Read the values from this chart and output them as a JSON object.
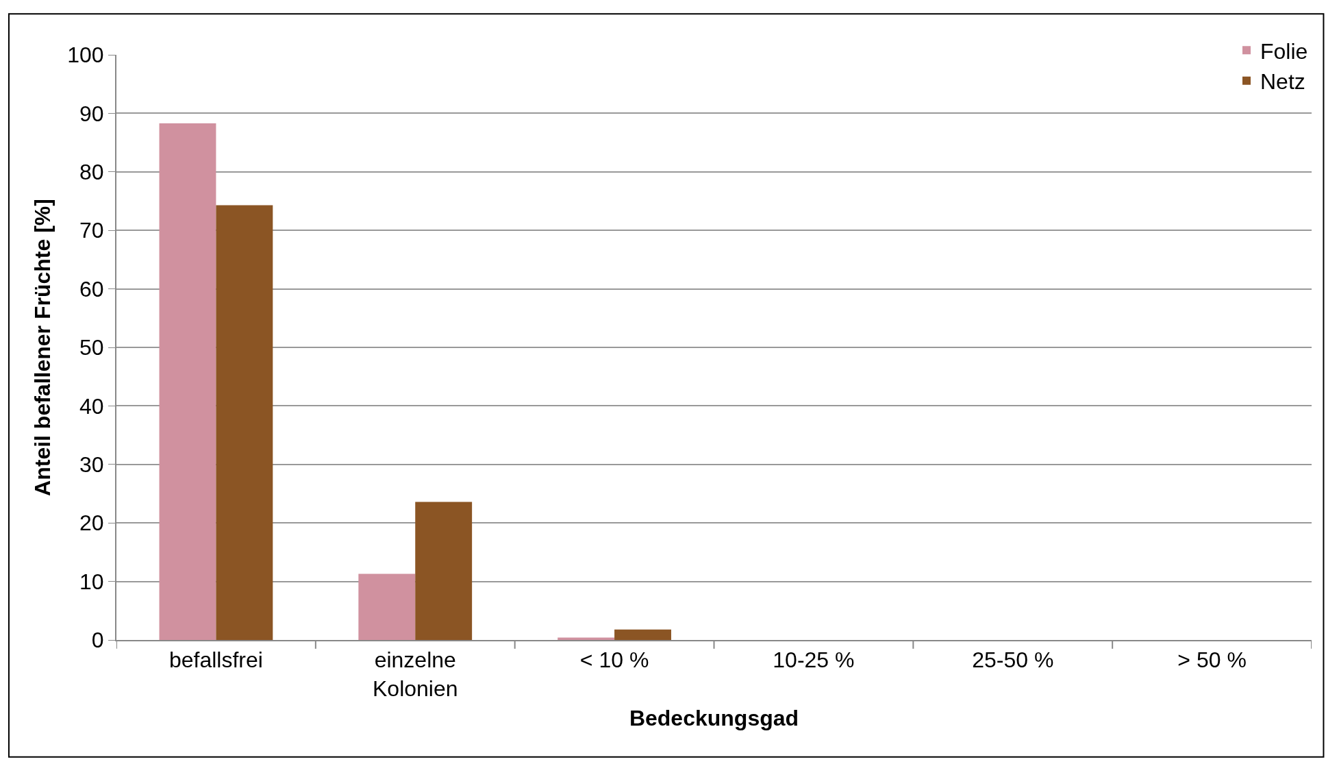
{
  "chart_data": {
    "type": "bar",
    "xlabel": "Bedeckungsgad",
    "ylabel": "Anteil befallener Früchte [%]",
    "categories": [
      "befallsfrei",
      "einzelne\nKolonien",
      "< 10 %",
      "10-25 %",
      "25-50 %",
      "> 50 %"
    ],
    "series": [
      {
        "name": "Folie",
        "color": "#d0919f",
        "values": [
          88.3,
          11.3,
          0.4,
          0,
          0,
          0
        ]
      },
      {
        "name": "Netz",
        "color": "#8b5524",
        "values": [
          74.3,
          23.6,
          1.8,
          0,
          0,
          0
        ]
      }
    ],
    "ylim": [
      0,
      100
    ],
    "yticks": [
      0,
      10,
      20,
      30,
      40,
      50,
      60,
      70,
      80,
      90,
      100
    ],
    "grid": "y",
    "legend": "top right"
  }
}
